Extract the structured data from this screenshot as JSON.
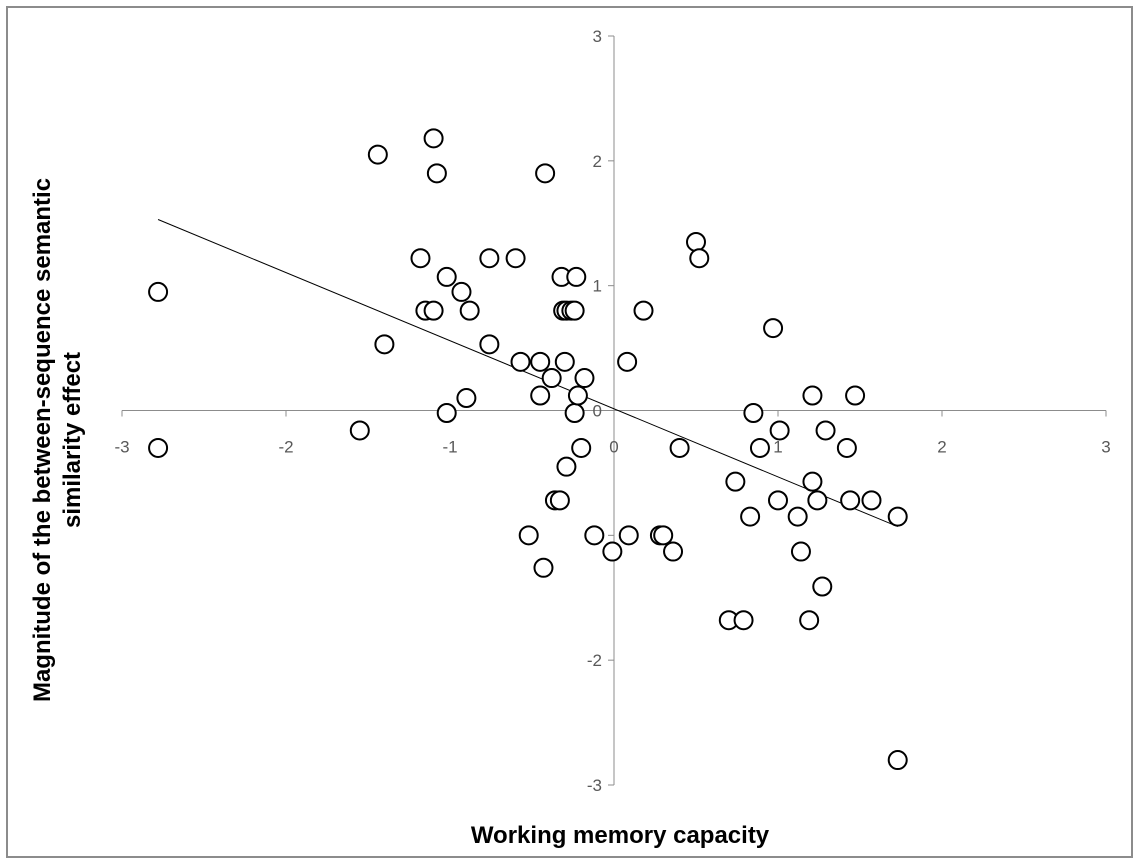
{
  "chart_data": {
    "type": "scatter",
    "title": "",
    "xlabel": "Working memory capacity",
    "ylabel": "Magnitude of the between-sequence semantic similarity effect",
    "xlim": [
      -3,
      3
    ],
    "ylim": [
      -3,
      3
    ],
    "xticks": [
      "-3",
      "-2",
      "-1",
      "0",
      "1",
      "2",
      "3"
    ],
    "yticks": [
      "3",
      "2",
      "1",
      "0",
      "-1",
      "-2",
      "-3"
    ],
    "grid": false,
    "legend": "none",
    "marker_style": "open circle",
    "trendline": {
      "type": "linear",
      "x": [
        -2.78,
        1.73
      ],
      "y": [
        1.53,
        -0.93
      ]
    },
    "points": [
      [
        -2.78,
        0.95
      ],
      [
        -2.78,
        -0.3
      ],
      [
        -1.55,
        -0.16
      ],
      [
        -1.44,
        2.05
      ],
      [
        -1.4,
        0.53
      ],
      [
        -1.18,
        1.22
      ],
      [
        -1.15,
        0.8
      ],
      [
        -1.1,
        2.18
      ],
      [
        -1.1,
        0.8
      ],
      [
        -1.08,
        1.9
      ],
      [
        -1.02,
        -0.02
      ],
      [
        -1.02,
        1.07
      ],
      [
        -0.93,
        0.95
      ],
      [
        -0.9,
        0.1
      ],
      [
        -0.88,
        0.8
      ],
      [
        -0.76,
        1.22
      ],
      [
        -0.76,
        0.53
      ],
      [
        -0.6,
        1.22
      ],
      [
        -0.57,
        0.39
      ],
      [
        -0.52,
        -1.0
      ],
      [
        -0.45,
        0.12
      ],
      [
        -0.45,
        0.39
      ],
      [
        -0.43,
        -1.26
      ],
      [
        -0.42,
        1.9
      ],
      [
        -0.38,
        0.26
      ],
      [
        -0.36,
        -0.72
      ],
      [
        -0.33,
        -0.72
      ],
      [
        -0.32,
        1.07
      ],
      [
        -0.31,
        0.8
      ],
      [
        -0.3,
        0.39
      ],
      [
        -0.29,
        0.8
      ],
      [
        -0.29,
        -0.45
      ],
      [
        -0.26,
        0.8
      ],
      [
        -0.24,
        0.8
      ],
      [
        -0.24,
        -0.02
      ],
      [
        -0.23,
        1.07
      ],
      [
        -0.22,
        0.12
      ],
      [
        -0.2,
        -0.3
      ],
      [
        -0.18,
        0.26
      ],
      [
        -0.12,
        -1.0
      ],
      [
        -0.01,
        -1.13
      ],
      [
        0.08,
        0.39
      ],
      [
        0.09,
        -1.0
      ],
      [
        0.18,
        0.8
      ],
      [
        0.28,
        -1.0
      ],
      [
        0.3,
        -1.0
      ],
      [
        0.36,
        -1.13
      ],
      [
        0.4,
        -0.3
      ],
      [
        0.5,
        1.35
      ],
      [
        0.52,
        1.22
      ],
      [
        0.7,
        -1.68
      ],
      [
        0.74,
        -0.57
      ],
      [
        0.79,
        -1.68
      ],
      [
        0.83,
        -0.85
      ],
      [
        0.85,
        -0.02
      ],
      [
        0.89,
        -0.3
      ],
      [
        0.97,
        0.66
      ],
      [
        1.0,
        -0.72
      ],
      [
        1.01,
        -0.16
      ],
      [
        1.12,
        -0.85
      ],
      [
        1.14,
        -1.13
      ],
      [
        1.19,
        -1.68
      ],
      [
        1.21,
        -0.57
      ],
      [
        1.21,
        0.12
      ],
      [
        1.24,
        -0.72
      ],
      [
        1.27,
        -1.41
      ],
      [
        1.29,
        -0.16
      ],
      [
        1.42,
        -0.3
      ],
      [
        1.44,
        -0.72
      ],
      [
        1.47,
        0.12
      ],
      [
        1.57,
        -0.72
      ],
      [
        1.73,
        -0.85
      ],
      [
        1.73,
        -2.8
      ]
    ]
  }
}
